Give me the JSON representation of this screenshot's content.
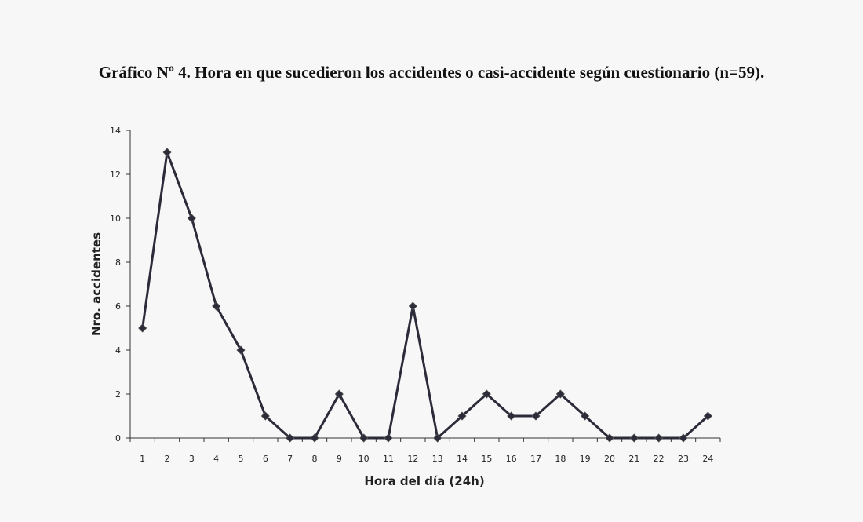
{
  "chart_data": {
    "type": "line",
    "title": "Gráfico Nº 4. Hora en que sucedieron los accidentes o casi-accidente según cuestionario (n=59).",
    "xlabel": "Hora del día (24h)",
    "ylabel": "Nro. accidentes",
    "categories": [
      "1",
      "2",
      "3",
      "4",
      "5",
      "6",
      "7",
      "8",
      "9",
      "10",
      "11",
      "12",
      "13",
      "14",
      "15",
      "16",
      "17",
      "18",
      "19",
      "20",
      "21",
      "22",
      "23",
      "24"
    ],
    "series": [
      {
        "values": [
          5,
          13,
          10,
          6,
          4,
          1,
          0,
          0,
          2,
          0,
          0,
          6,
          0,
          1,
          2,
          1,
          1,
          2,
          1,
          0,
          0,
          0,
          0,
          1
        ]
      }
    ],
    "ylim": [
      0,
      14
    ],
    "yticks": [
      0,
      2,
      4,
      6,
      8,
      10,
      12,
      14
    ],
    "grid": false,
    "legend": "none",
    "line_color": "#2b2b3a",
    "marker": "diamond"
  }
}
